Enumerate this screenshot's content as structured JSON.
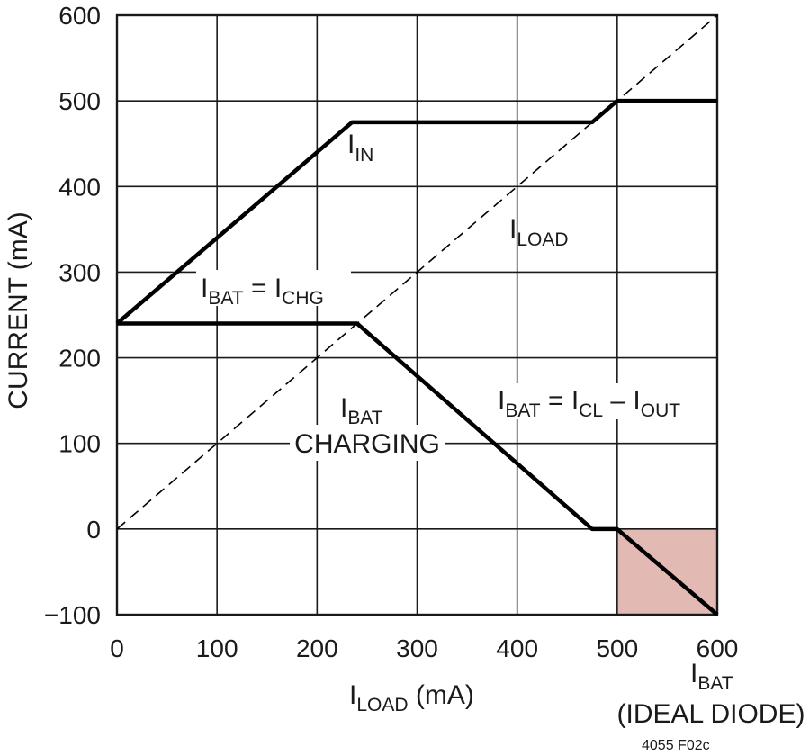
{
  "chart_data": {
    "type": "line",
    "x_axis": {
      "ticks": [
        0,
        100,
        200,
        300,
        400,
        500,
        600
      ],
      "tick_labels": [
        "0",
        "100",
        "200",
        "300",
        "400",
        "500",
        "600"
      ],
      "range": [
        0,
        600
      ],
      "label": {
        "main": "I",
        "sub": "LOAD",
        "rest": " (mA)"
      },
      "extra_label": {
        "line1": {
          "main": "I",
          "sub": "BAT"
        },
        "line2": "(IDEAL DIODE)"
      }
    },
    "y_axis": {
      "ticks": [
        -100,
        0,
        100,
        200,
        300,
        400,
        500,
        600
      ],
      "tick_labels": [
        "−100",
        "0",
        "100",
        "200",
        "300",
        "400",
        "500",
        "600"
      ],
      "range": [
        -100,
        600
      ],
      "label": "CURRENT (mA)"
    },
    "grid": true,
    "series": [
      {
        "name": "I_IN",
        "style": "solid",
        "points": [
          [
            0,
            240
          ],
          [
            235,
            475
          ],
          [
            475,
            475
          ],
          [
            500,
            500
          ],
          [
            600,
            500
          ]
        ]
      },
      {
        "name": "I_LOAD",
        "style": "dashed",
        "points": [
          [
            0,
            0
          ],
          [
            600,
            600
          ]
        ]
      },
      {
        "name": "I_BAT",
        "style": "solid",
        "points": [
          [
            0,
            240
          ],
          [
            240,
            240
          ],
          [
            475,
            0
          ],
          [
            500,
            0
          ],
          [
            600,
            -100
          ]
        ]
      }
    ],
    "shaded_region": {
      "x": [
        500,
        600
      ],
      "y": [
        -100,
        0
      ],
      "color": "#e3b9b3"
    },
    "annotations": {
      "iin": {
        "main": "I",
        "sub": "IN"
      },
      "iload": {
        "main": "I",
        "sub": "LOAD"
      },
      "ibat_eq_ichg": {
        "p1": "I",
        "s1": "BAT",
        "p2": " = I",
        "s2": "CHG"
      },
      "ibat_charging": {
        "line1": {
          "main": "I",
          "sub": "BAT"
        },
        "line2": "CHARGING"
      },
      "ibat_eq_icl_iout": {
        "p1": "I",
        "s1": "BAT",
        "p2": " = I",
        "s2": "CL",
        "p3": " – I",
        "s3": "OUT"
      }
    },
    "figure_code": "4055 F02c"
  }
}
